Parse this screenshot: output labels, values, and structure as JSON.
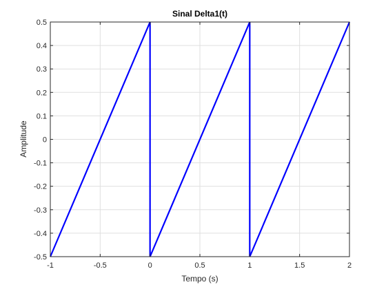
{
  "chart_data": {
    "type": "line",
    "title": "Sinal Delta1(t)",
    "xlabel": "Tempo (s)",
    "ylabel": "Amplitude",
    "xlim": [
      -1,
      2
    ],
    "ylim": [
      -0.5,
      0.5
    ],
    "grid": true,
    "xticks": [
      -1,
      -0.5,
      0,
      0.5,
      1,
      1.5,
      2
    ],
    "xtick_labels": [
      "-1",
      "-0.5",
      "0",
      "0.5",
      "1",
      "1.5",
      "2"
    ],
    "yticks": [
      -0.5,
      -0.4,
      -0.3,
      -0.2,
      -0.1,
      0,
      0.1,
      0.2,
      0.3,
      0.4,
      0.5
    ],
    "ytick_labels": [
      "-0.5",
      "-0.4",
      "-0.3",
      "-0.2",
      "-0.1",
      "0",
      "0.1",
      "0.2",
      "0.3",
      "0.4",
      "0.5"
    ],
    "series": [
      {
        "x": [
          -1,
          0,
          0,
          1,
          1,
          2
        ],
        "y": [
          -0.5,
          0.5,
          -0.5,
          0.5,
          -0.5,
          0.5
        ],
        "color": "#0000ff"
      }
    ]
  }
}
